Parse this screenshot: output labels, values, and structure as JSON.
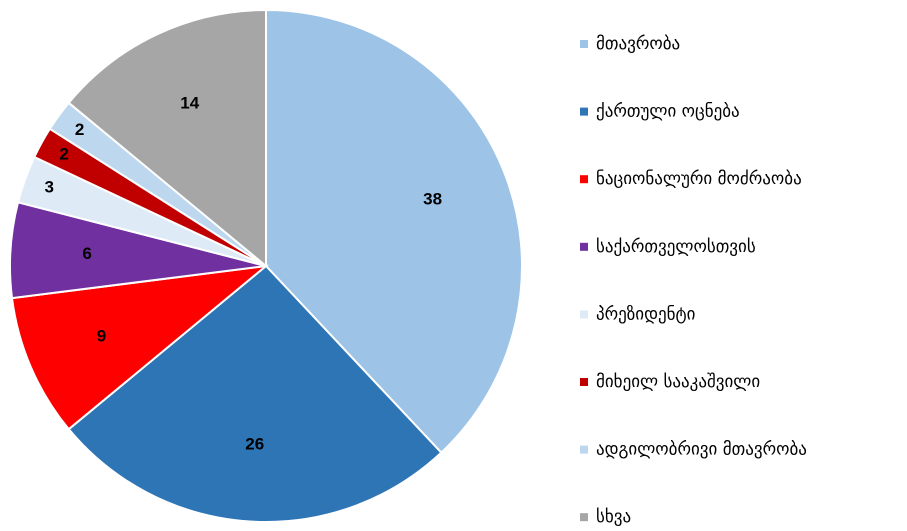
{
  "chart_data": {
    "type": "pie",
    "categories": [
      "მთავრობა",
      "ქართული ოცნება",
      "ნაციონალური მოძრაობა",
      "საქართველოსთვის",
      "პრეზიდენტი",
      "მიხეილ სააკაშვილი",
      "ადგილობრივი მთავრობა",
      "სხვა"
    ],
    "values": [
      38,
      26,
      9,
      6,
      3,
      2,
      2,
      14
    ],
    "colors": [
      "#9dc3e6",
      "#2e75b6",
      "#ff0000",
      "#7030a0",
      "#deebf7",
      "#c00000",
      "#bdd7ee",
      "#a6a6a6"
    ],
    "legend": "right"
  }
}
